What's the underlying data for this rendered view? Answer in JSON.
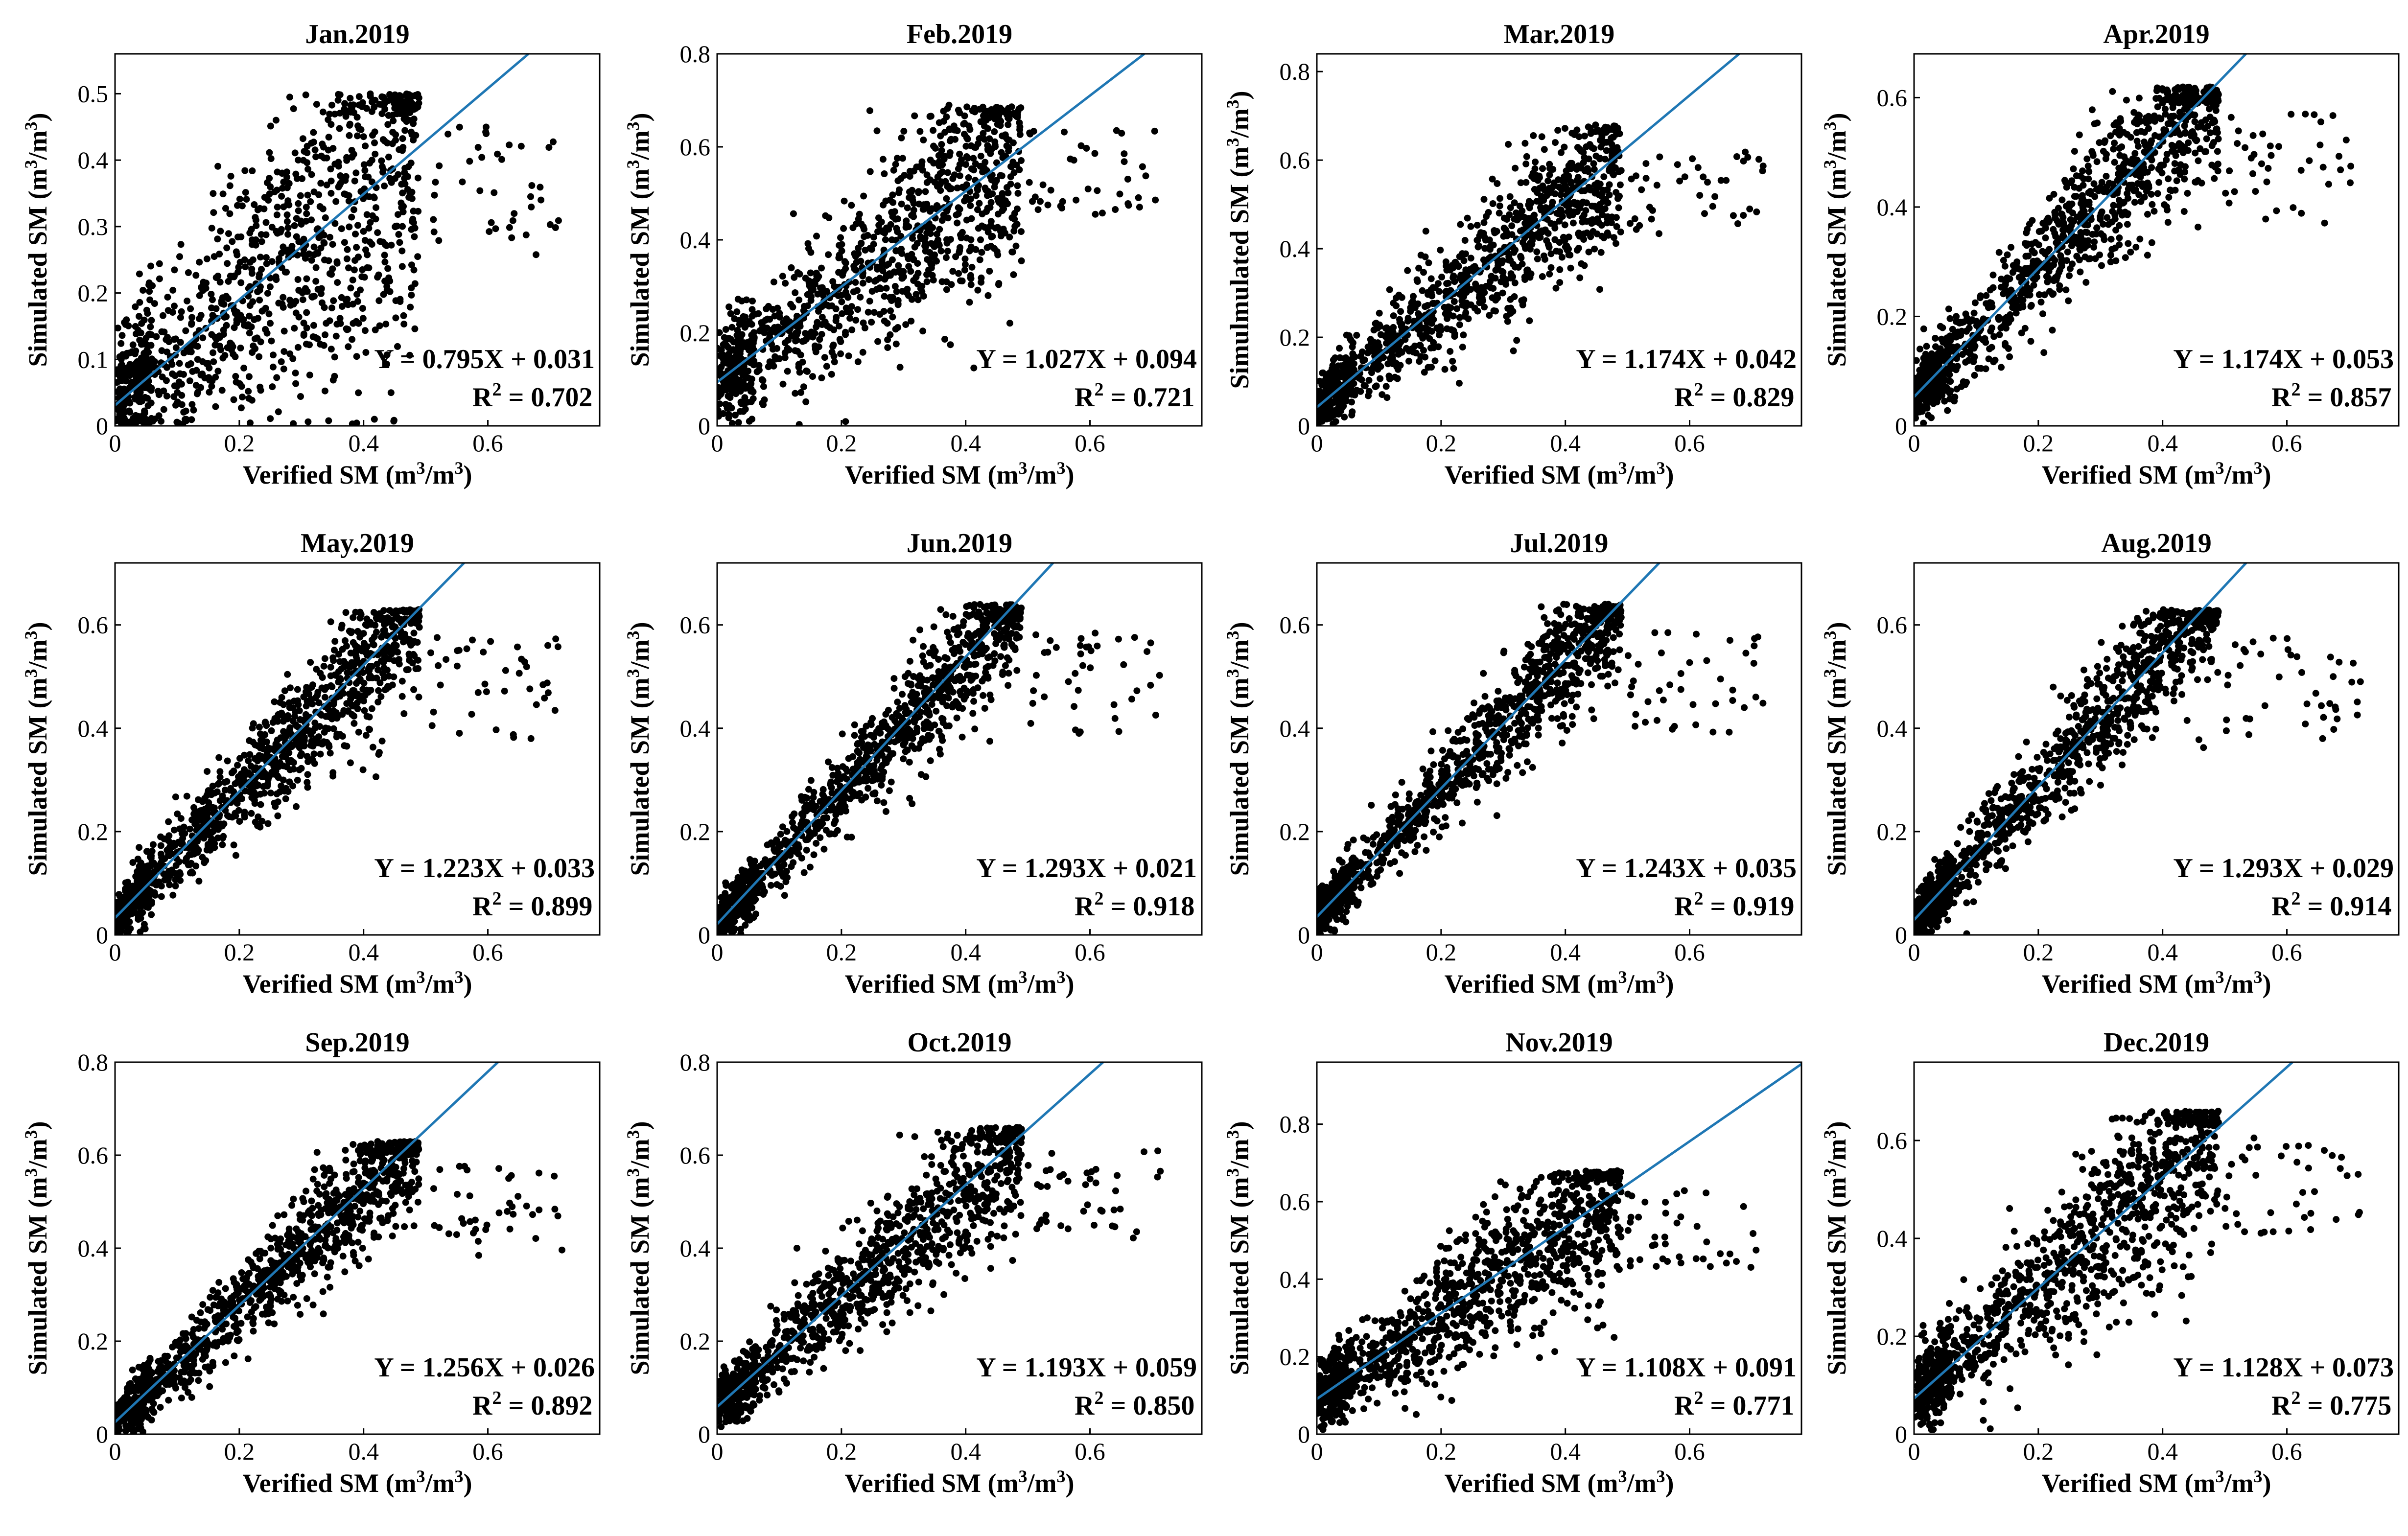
{
  "figure": {
    "style": {
      "fit_line_color": "#1f77b4",
      "point_color": "#000000",
      "frame_color": "#000000"
    }
  },
  "chart_data": [
    {
      "type": "scatter",
      "title": "Jan.2019",
      "xlabel": "Verified SM",
      "ylabel": "Simulated SM",
      "unit_base": "m",
      "unit_exp": "3",
      "xlim": [
        0,
        0.78
      ],
      "ylim": [
        0,
        0.56
      ],
      "xticks": [
        "0",
        "0.2",
        "0.4",
        "0.6"
      ],
      "yticks": [
        "0",
        "0.1",
        "0.2",
        "0.3",
        "0.4",
        "0.5"
      ],
      "ytick_values": [
        0,
        0.1,
        0.2,
        0.3,
        0.4,
        0.5
      ],
      "fit": {
        "slope": 0.795,
        "intercept": 0.031
      },
      "equation": "Y = 0.795X + 0.031",
      "r2_label": "R",
      "r2_exp": "2",
      "r2_value": " = 0.702",
      "r2": 0.702,
      "cluster_cap": 0.5
    },
    {
      "type": "scatter",
      "title": "Feb.2019",
      "xlabel": "Verified SM",
      "ylabel": "Simulated SM",
      "unit_base": "m",
      "unit_exp": "3",
      "xlim": [
        0,
        0.78
      ],
      "ylim": [
        0,
        0.8
      ],
      "xticks": [
        "0",
        "0.2",
        "0.4",
        "0.6"
      ],
      "yticks": [
        "0",
        "0.2",
        "0.4",
        "0.6",
        "0.8"
      ],
      "ytick_values": [
        0,
        0.2,
        0.4,
        0.6,
        0.8
      ],
      "fit": {
        "slope": 1.027,
        "intercept": 0.094
      },
      "equation": "Y = 1.027X + 0.094",
      "r2_label": "R",
      "r2_exp": "2",
      "r2_value": " = 0.721",
      "r2": 0.721,
      "cluster_cap": 0.69
    },
    {
      "type": "scatter",
      "title": "Mar.2019",
      "xlabel": "Verified SM",
      "ylabel": "Simulmulated SM",
      "unit_base": "m",
      "unit_exp": "3",
      "xlim": [
        0,
        0.78
      ],
      "ylim": [
        0,
        0.84
      ],
      "xticks": [
        "0",
        "0.2",
        "0.4",
        "0.6"
      ],
      "yticks": [
        "0",
        "0.2",
        "0.4",
        "0.6",
        "0.8"
      ],
      "ytick_values": [
        0,
        0.2,
        0.4,
        0.6,
        0.8
      ],
      "fit": {
        "slope": 1.174,
        "intercept": 0.042
      },
      "equation": "Y = 1.174X + 0.042",
      "r2_label": "R",
      "r2_exp": "2",
      "r2_value": " = 0.829",
      "r2": 0.829,
      "cluster_cap": 0.68
    },
    {
      "type": "scatter",
      "title": "Apr.2019",
      "xlabel": "Verified SM",
      "ylabel": "Simulated SM",
      "unit_base": "m",
      "unit_exp": "3",
      "xlim": [
        0,
        0.78
      ],
      "ylim": [
        0,
        0.68
      ],
      "xticks": [
        "0",
        "0.2",
        "0.4",
        "0.6"
      ],
      "yticks": [
        "0",
        "0.2",
        "0.4",
        "0.6"
      ],
      "ytick_values": [
        0,
        0.2,
        0.4,
        0.6
      ],
      "fit": {
        "slope": 1.174,
        "intercept": 0.053
      },
      "equation": "Y = 1.174X + 0.053",
      "r2_label": "R",
      "r2_exp": "2",
      "r2_value": " = 0.857",
      "r2": 0.857,
      "cluster_cap": 0.62
    },
    {
      "type": "scatter",
      "title": "May.2019",
      "xlabel": "Verified SM",
      "ylabel": "Simulated SM",
      "unit_base": "m",
      "unit_exp": "3",
      "xlim": [
        0,
        0.78
      ],
      "ylim": [
        0,
        0.72
      ],
      "xticks": [
        "0",
        "0.2",
        "0.4",
        "0.6"
      ],
      "yticks": [
        "0",
        "0.2",
        "0.4",
        "0.6"
      ],
      "ytick_values": [
        0,
        0.2,
        0.4,
        0.6
      ],
      "fit": {
        "slope": 1.223,
        "intercept": 0.033
      },
      "equation": "Y = 1.223X + 0.033",
      "r2_label": "R",
      "r2_exp": "2",
      "r2_value": " = 0.899",
      "r2": 0.899,
      "cluster_cap": 0.63
    },
    {
      "type": "scatter",
      "title": "Jun.2019",
      "xlabel": "Verified SM",
      "ylabel": "Simulated SM",
      "unit_base": "m",
      "unit_exp": "3",
      "xlim": [
        0,
        0.78
      ],
      "ylim": [
        0,
        0.72
      ],
      "xticks": [
        "0",
        "0.2",
        "0.4",
        "0.6"
      ],
      "yticks": [
        "0",
        "0.2",
        "0.4",
        "0.6"
      ],
      "ytick_values": [
        0,
        0.2,
        0.4,
        0.6
      ],
      "fit": {
        "slope": 1.293,
        "intercept": 0.021
      },
      "equation": "Y = 1.293X + 0.021",
      "r2_label": "R",
      "r2_exp": "2",
      "r2_value": " = 0.918",
      "r2": 0.918,
      "cluster_cap": 0.64
    },
    {
      "type": "scatter",
      "title": "Jul.2019",
      "xlabel": "Verified SM",
      "ylabel": "Simulated SM",
      "unit_base": "m",
      "unit_exp": "3",
      "xlim": [
        0,
        0.78
      ],
      "ylim": [
        0,
        0.72
      ],
      "xticks": [
        "0",
        "0.2",
        "0.4",
        "0.6"
      ],
      "yticks": [
        "0",
        "0.2",
        "0.4",
        "0.6"
      ],
      "ytick_values": [
        0,
        0.2,
        0.4,
        0.6
      ],
      "fit": {
        "slope": 1.243,
        "intercept": 0.035
      },
      "equation": "Y = 1.243X + 0.035",
      "r2_label": "R",
      "r2_exp": "2",
      "r2_value": " = 0.919",
      "r2": 0.919,
      "cluster_cap": 0.64
    },
    {
      "type": "scatter",
      "title": "Aug.2019",
      "xlabel": "Verified SM",
      "ylabel": "Simulated SM",
      "unit_base": "m",
      "unit_exp": "3",
      "xlim": [
        0,
        0.78
      ],
      "ylim": [
        0,
        0.72
      ],
      "xticks": [
        "0",
        "0.2",
        "0.4",
        "0.6"
      ],
      "yticks": [
        "0",
        "0.2",
        "0.4",
        "0.6"
      ],
      "ytick_values": [
        0,
        0.2,
        0.4,
        0.6
      ],
      "fit": {
        "slope": 1.293,
        "intercept": 0.029
      },
      "equation": "Y = 1.293X + 0.029",
      "r2_label": "R",
      "r2_exp": "2",
      "r2_value": " = 0.914",
      "r2": 0.914,
      "cluster_cap": 0.63
    },
    {
      "type": "scatter",
      "title": "Sep.2019",
      "xlabel": "Verified SM",
      "ylabel": "Simulated SM",
      "unit_base": "m",
      "unit_exp": "3",
      "xlim": [
        0,
        0.78
      ],
      "ylim": [
        0,
        0.8
      ],
      "xticks": [
        "0",
        "0.2",
        "0.4",
        "0.6"
      ],
      "yticks": [
        "0",
        "0.2",
        "0.4",
        "0.6",
        "0.8"
      ],
      "ytick_values": [
        0,
        0.2,
        0.4,
        0.6,
        0.8
      ],
      "fit": {
        "slope": 1.256,
        "intercept": 0.026
      },
      "equation": "Y = 1.256X + 0.026",
      "r2_label": "R",
      "r2_exp": "2",
      "r2_value": " = 0.892",
      "r2": 0.892,
      "cluster_cap": 0.63
    },
    {
      "type": "scatter",
      "title": "Oct.2019",
      "xlabel": "Verified SM",
      "ylabel": "Simulated SM",
      "unit_base": "m",
      "unit_exp": "3",
      "xlim": [
        0,
        0.78
      ],
      "ylim": [
        0,
        0.8
      ],
      "xticks": [
        "0",
        "0.2",
        "0.4",
        "0.6"
      ],
      "yticks": [
        "0",
        "0.2",
        "0.4",
        "0.6",
        "0.8"
      ],
      "ytick_values": [
        0,
        0.2,
        0.4,
        0.6,
        0.8
      ],
      "fit": {
        "slope": 1.193,
        "intercept": 0.059
      },
      "equation": "Y = 1.193X + 0.059",
      "r2_label": "R",
      "r2_exp": "2",
      "r2_value": " = 0.850",
      "r2": 0.85,
      "cluster_cap": 0.66
    },
    {
      "type": "scatter",
      "title": "Nov.2019",
      "xlabel": "Verified SM",
      "ylabel": "Simulated SM",
      "unit_base": "m",
      "unit_exp": "3",
      "xlim": [
        0,
        0.78
      ],
      "ylim": [
        0,
        0.96
      ],
      "xticks": [
        "0",
        "0.2",
        "0.4",
        "0.6"
      ],
      "yticks": [
        "0",
        "0.2",
        "0.4",
        "0.6",
        "0.8"
      ],
      "ytick_values": [
        0,
        0.2,
        0.4,
        0.6,
        0.8
      ],
      "fit": {
        "slope": 1.108,
        "intercept": 0.091
      },
      "equation": "Y = 1.108X + 0.091",
      "r2_label": "R",
      "r2_exp": "2",
      "r2_value": " = 0.771",
      "r2": 0.771,
      "cluster_cap": 0.68
    },
    {
      "type": "scatter",
      "title": "Dec.2019",
      "xlabel": "Verified SM",
      "ylabel": "Simulated SM",
      "unit_base": "m",
      "unit_exp": "3",
      "xlim": [
        0,
        0.78
      ],
      "ylim": [
        0,
        0.76
      ],
      "xticks": [
        "0",
        "0.2",
        "0.4",
        "0.6"
      ],
      "yticks": [
        "0",
        "0.2",
        "0.4",
        "0.6"
      ],
      "ytick_values": [
        0,
        0.2,
        0.4,
        0.6
      ],
      "fit": {
        "slope": 1.128,
        "intercept": 0.073
      },
      "equation": "Y = 1.128X + 0.073",
      "r2_label": "R",
      "r2_exp": "2",
      "r2_value": " = 0.775",
      "r2": 0.775,
      "cluster_cap": 0.66
    }
  ]
}
